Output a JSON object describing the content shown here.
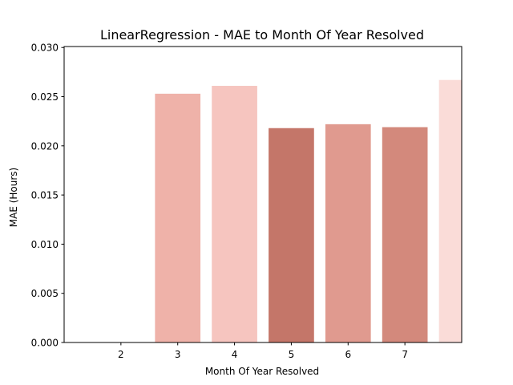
{
  "chart_data": {
    "type": "bar",
    "title": "LinearRegression - MAE to Month Of Year Resolved",
    "xlabel": "Month Of Year Resolved",
    "ylabel": "MAE (Hours)",
    "x_ticks": [
      "2",
      "3",
      "4",
      "5",
      "6",
      "7"
    ],
    "y_ticks": [
      "0.000",
      "0.005",
      "0.010",
      "0.015",
      "0.020",
      "0.025",
      "0.030"
    ],
    "xlim": [
      1,
      8
    ],
    "ylim": [
      0,
      0.0301
    ],
    "grid": false,
    "bars": [
      {
        "x": 3,
        "value": 0.0253,
        "color": "#efb2a9"
      },
      {
        "x": 4,
        "value": 0.0261,
        "color": "#f6c5bf"
      },
      {
        "x": 5,
        "value": 0.0218,
        "color": "#c47669"
      },
      {
        "x": 6,
        "value": 0.0222,
        "color": "#e09a8f"
      },
      {
        "x": 7,
        "value": 0.0219,
        "color": "#d3897c"
      },
      {
        "x": 8,
        "value": 0.0267,
        "color": "#fadcd8"
      }
    ]
  }
}
